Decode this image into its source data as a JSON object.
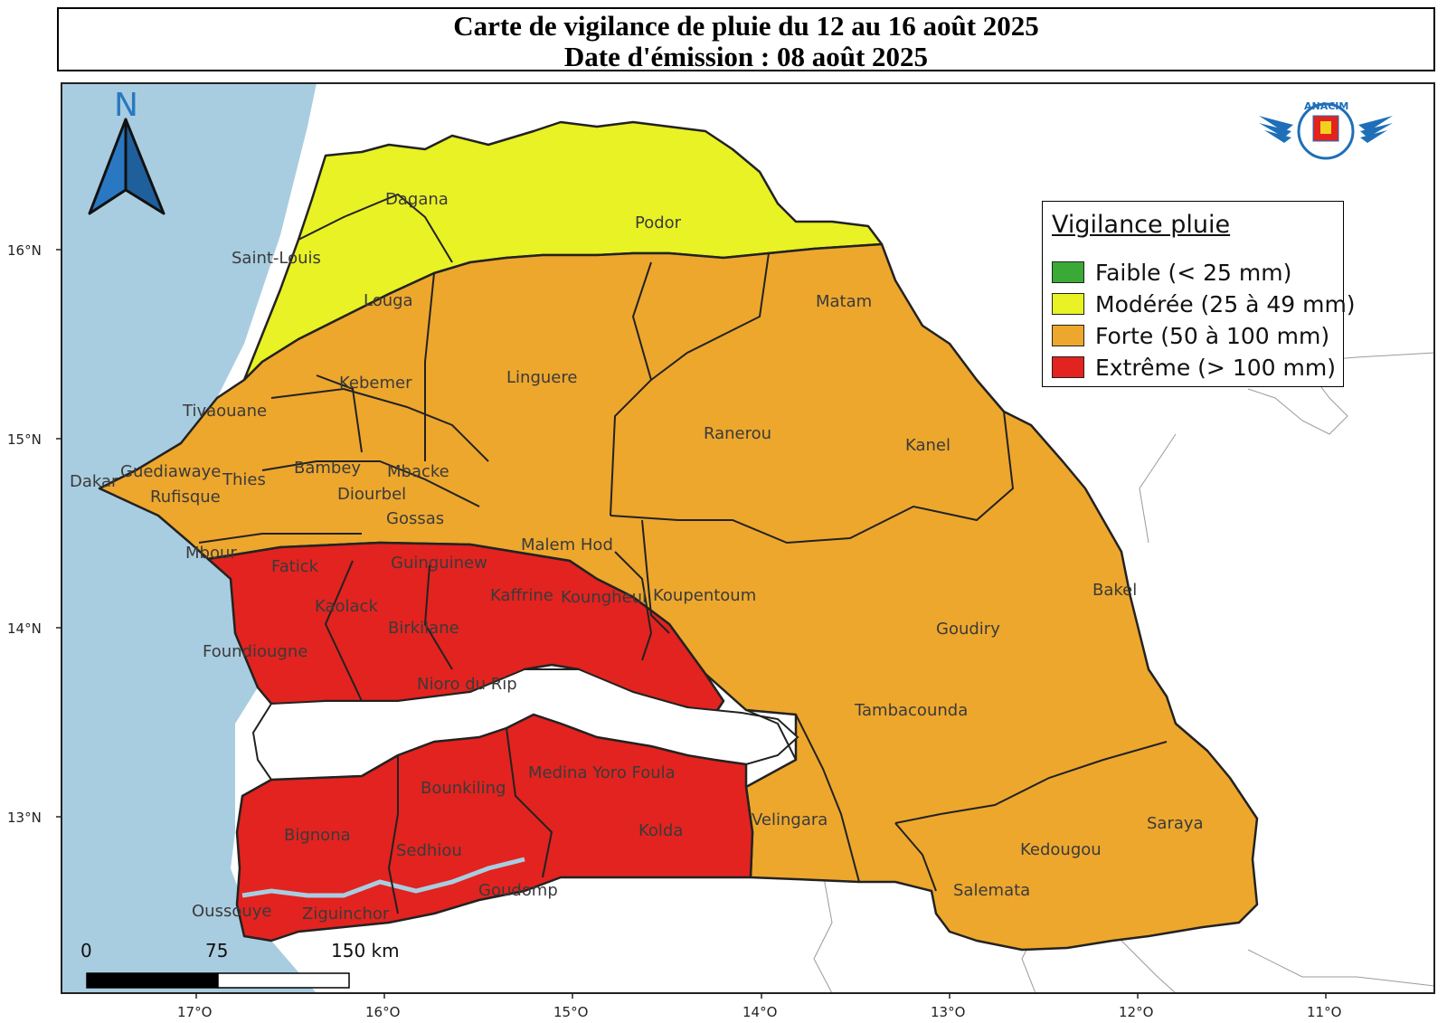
{
  "title": {
    "line1": "Carte de vigilance de pluie du 12 au 16 août 2025",
    "line2": "Date d'émission : 08 août 2025"
  },
  "north_arrow": {
    "letter": "N",
    "icon": "north-arrow-icon"
  },
  "logo": {
    "icon": "anacim-logo",
    "text": "ANACIM"
  },
  "legend": {
    "title": "Vigilance pluie",
    "items": [
      {
        "label": "Faible (< 25 mm)",
        "color": "#3aa935"
      },
      {
        "label": "Modérée (25 à 49 mm)",
        "color": "#e8f224"
      },
      {
        "label": "Forte (50 à 100 mm)",
        "color": "#eda72d"
      },
      {
        "label": "Extrême (> 100 mm)",
        "color": "#e2231f"
      }
    ]
  },
  "colors": {
    "sea": "#a9cde0",
    "moderee": "#e8f224",
    "forte": "#eda72d",
    "extreme": "#e2231f"
  },
  "scale_bar": {
    "labels": [
      "0",
      "75",
      "150 km"
    ]
  },
  "axes": {
    "lat_labels": [
      "16°N",
      "15°N",
      "14°N",
      "13°N"
    ],
    "lon_labels": [
      "17°O",
      "16°O",
      "15°O",
      "14°O",
      "13°O",
      "12°O",
      "11°O"
    ]
  },
  "places": [
    {
      "name": "Dagana",
      "level": "Modérée"
    },
    {
      "name": "Podor",
      "level": "Modérée"
    },
    {
      "name": "Saint-Louis",
      "level": "Modérée"
    },
    {
      "name": "Louga",
      "level": "Modérée"
    },
    {
      "name": "Matam",
      "level": "Forte"
    },
    {
      "name": "Kebemer",
      "level": "Forte"
    },
    {
      "name": "Linguere",
      "level": "Forte"
    },
    {
      "name": "Tivaouane",
      "level": "Forte"
    },
    {
      "name": "Ranerou",
      "level": "Forte"
    },
    {
      "name": "Kanel",
      "level": "Forte"
    },
    {
      "name": "Bambey",
      "level": "Forte"
    },
    {
      "name": "Mbacke",
      "level": "Forte"
    },
    {
      "name": "Diourbel",
      "level": "Forte"
    },
    {
      "name": "Dakar",
      "level": "Forte"
    },
    {
      "name": "Guediawaye",
      "level": "Forte"
    },
    {
      "name": "Thies",
      "level": "Forte"
    },
    {
      "name": "Rufisque",
      "level": "Forte"
    },
    {
      "name": "Gossas",
      "level": "Forte"
    },
    {
      "name": "Mbour",
      "level": "Forte"
    },
    {
      "name": "Malem Hod",
      "level": "Forte"
    },
    {
      "name": "Koupentoum",
      "level": "Forte"
    },
    {
      "name": "Bakel",
      "level": "Forte"
    },
    {
      "name": "Goudiry",
      "level": "Forte"
    },
    {
      "name": "Tambacounda",
      "level": "Forte"
    },
    {
      "name": "Velingara",
      "level": "Forte"
    },
    {
      "name": "Saraya",
      "level": "Forte"
    },
    {
      "name": "Kedougou",
      "level": "Forte"
    },
    {
      "name": "Salemata",
      "level": "Forte"
    },
    {
      "name": "Fatick",
      "level": "Extrême"
    },
    {
      "name": "Guinguinew",
      "level": "Extrême"
    },
    {
      "name": "Kaffrine",
      "level": "Extrême"
    },
    {
      "name": "Koungheul",
      "level": "Extrême"
    },
    {
      "name": "Kaolack",
      "level": "Extrême"
    },
    {
      "name": "Birkilane",
      "level": "Extrême"
    },
    {
      "name": "Foundiougne",
      "level": "Extrême"
    },
    {
      "name": "Nioro du Rip",
      "level": "Extrême"
    },
    {
      "name": "Medina Yoro Foula",
      "level": "Extrême"
    },
    {
      "name": "Bounkiling",
      "level": "Extrême"
    },
    {
      "name": "Kolda",
      "level": "Extrême"
    },
    {
      "name": "Bignona",
      "level": "Extrême"
    },
    {
      "name": "Sedhiou",
      "level": "Extrême"
    },
    {
      "name": "Goudomp",
      "level": "Extrême"
    },
    {
      "name": "Oussouye",
      "level": "Extrême"
    },
    {
      "name": "Ziguinchor",
      "level": "Extrême"
    }
  ]
}
